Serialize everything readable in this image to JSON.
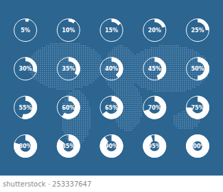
{
  "chart_data": {
    "type": "donut",
    "values": [
      5,
      10,
      15,
      20,
      25,
      30,
      35,
      40,
      45,
      50,
      55,
      60,
      65,
      70,
      75,
      80,
      85,
      90,
      95,
      100
    ],
    "value_labels": [
      "5%",
      "10%",
      "15%",
      "20%",
      "25%",
      "30%",
      "35%",
      "40%",
      "45%",
      "50%",
      "55%",
      "60%",
      "65%",
      "70%",
      "75%",
      "80%",
      "85%",
      "90%",
      "95%",
      "100%"
    ],
    "ylim": [
      0,
      100
    ],
    "color": "#ffffff",
    "data_labels": true
  },
  "watermark": "shutterstock · 253337647"
}
